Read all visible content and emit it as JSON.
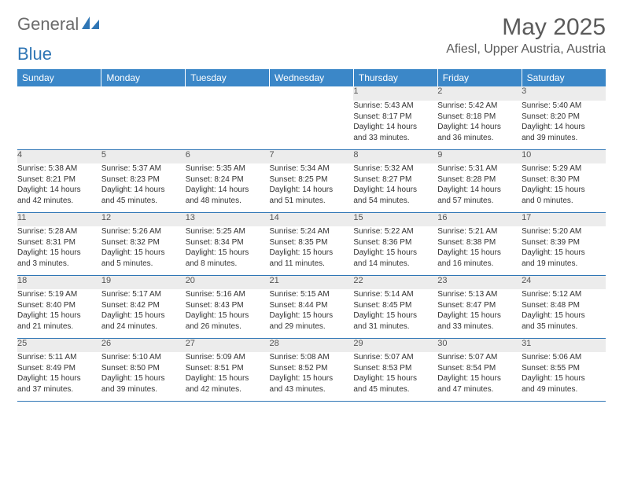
{
  "logo": {
    "part1": "General",
    "part2": "Blue"
  },
  "title": {
    "month": "May 2025",
    "location": "Afiesl, Upper Austria, Austria"
  },
  "colors": {
    "header_bg": "#3b87c8",
    "header_text": "#ffffff",
    "daynum_bg": "#ececec",
    "rule": "#2f76b5",
    "logo_gray": "#6b6b6b",
    "logo_blue": "#2f76b5",
    "body_text": "#333333",
    "background": "#ffffff"
  },
  "weekdays": [
    "Sunday",
    "Monday",
    "Tuesday",
    "Wednesday",
    "Thursday",
    "Friday",
    "Saturday"
  ],
  "weeks": [
    [
      null,
      null,
      null,
      null,
      {
        "n": "1",
        "sr": "Sunrise: 5:43 AM",
        "ss": "Sunset: 8:17 PM",
        "d1": "Daylight: 14 hours",
        "d2": "and 33 minutes."
      },
      {
        "n": "2",
        "sr": "Sunrise: 5:42 AM",
        "ss": "Sunset: 8:18 PM",
        "d1": "Daylight: 14 hours",
        "d2": "and 36 minutes."
      },
      {
        "n": "3",
        "sr": "Sunrise: 5:40 AM",
        "ss": "Sunset: 8:20 PM",
        "d1": "Daylight: 14 hours",
        "d2": "and 39 minutes."
      }
    ],
    [
      {
        "n": "4",
        "sr": "Sunrise: 5:38 AM",
        "ss": "Sunset: 8:21 PM",
        "d1": "Daylight: 14 hours",
        "d2": "and 42 minutes."
      },
      {
        "n": "5",
        "sr": "Sunrise: 5:37 AM",
        "ss": "Sunset: 8:23 PM",
        "d1": "Daylight: 14 hours",
        "d2": "and 45 minutes."
      },
      {
        "n": "6",
        "sr": "Sunrise: 5:35 AM",
        "ss": "Sunset: 8:24 PM",
        "d1": "Daylight: 14 hours",
        "d2": "and 48 minutes."
      },
      {
        "n": "7",
        "sr": "Sunrise: 5:34 AM",
        "ss": "Sunset: 8:25 PM",
        "d1": "Daylight: 14 hours",
        "d2": "and 51 minutes."
      },
      {
        "n": "8",
        "sr": "Sunrise: 5:32 AM",
        "ss": "Sunset: 8:27 PM",
        "d1": "Daylight: 14 hours",
        "d2": "and 54 minutes."
      },
      {
        "n": "9",
        "sr": "Sunrise: 5:31 AM",
        "ss": "Sunset: 8:28 PM",
        "d1": "Daylight: 14 hours",
        "d2": "and 57 minutes."
      },
      {
        "n": "10",
        "sr": "Sunrise: 5:29 AM",
        "ss": "Sunset: 8:30 PM",
        "d1": "Daylight: 15 hours",
        "d2": "and 0 minutes."
      }
    ],
    [
      {
        "n": "11",
        "sr": "Sunrise: 5:28 AM",
        "ss": "Sunset: 8:31 PM",
        "d1": "Daylight: 15 hours",
        "d2": "and 3 minutes."
      },
      {
        "n": "12",
        "sr": "Sunrise: 5:26 AM",
        "ss": "Sunset: 8:32 PM",
        "d1": "Daylight: 15 hours",
        "d2": "and 5 minutes."
      },
      {
        "n": "13",
        "sr": "Sunrise: 5:25 AM",
        "ss": "Sunset: 8:34 PM",
        "d1": "Daylight: 15 hours",
        "d2": "and 8 minutes."
      },
      {
        "n": "14",
        "sr": "Sunrise: 5:24 AM",
        "ss": "Sunset: 8:35 PM",
        "d1": "Daylight: 15 hours",
        "d2": "and 11 minutes."
      },
      {
        "n": "15",
        "sr": "Sunrise: 5:22 AM",
        "ss": "Sunset: 8:36 PM",
        "d1": "Daylight: 15 hours",
        "d2": "and 14 minutes."
      },
      {
        "n": "16",
        "sr": "Sunrise: 5:21 AM",
        "ss": "Sunset: 8:38 PM",
        "d1": "Daylight: 15 hours",
        "d2": "and 16 minutes."
      },
      {
        "n": "17",
        "sr": "Sunrise: 5:20 AM",
        "ss": "Sunset: 8:39 PM",
        "d1": "Daylight: 15 hours",
        "d2": "and 19 minutes."
      }
    ],
    [
      {
        "n": "18",
        "sr": "Sunrise: 5:19 AM",
        "ss": "Sunset: 8:40 PM",
        "d1": "Daylight: 15 hours",
        "d2": "and 21 minutes."
      },
      {
        "n": "19",
        "sr": "Sunrise: 5:17 AM",
        "ss": "Sunset: 8:42 PM",
        "d1": "Daylight: 15 hours",
        "d2": "and 24 minutes."
      },
      {
        "n": "20",
        "sr": "Sunrise: 5:16 AM",
        "ss": "Sunset: 8:43 PM",
        "d1": "Daylight: 15 hours",
        "d2": "and 26 minutes."
      },
      {
        "n": "21",
        "sr": "Sunrise: 5:15 AM",
        "ss": "Sunset: 8:44 PM",
        "d1": "Daylight: 15 hours",
        "d2": "and 29 minutes."
      },
      {
        "n": "22",
        "sr": "Sunrise: 5:14 AM",
        "ss": "Sunset: 8:45 PM",
        "d1": "Daylight: 15 hours",
        "d2": "and 31 minutes."
      },
      {
        "n": "23",
        "sr": "Sunrise: 5:13 AM",
        "ss": "Sunset: 8:47 PM",
        "d1": "Daylight: 15 hours",
        "d2": "and 33 minutes."
      },
      {
        "n": "24",
        "sr": "Sunrise: 5:12 AM",
        "ss": "Sunset: 8:48 PM",
        "d1": "Daylight: 15 hours",
        "d2": "and 35 minutes."
      }
    ],
    [
      {
        "n": "25",
        "sr": "Sunrise: 5:11 AM",
        "ss": "Sunset: 8:49 PM",
        "d1": "Daylight: 15 hours",
        "d2": "and 37 minutes."
      },
      {
        "n": "26",
        "sr": "Sunrise: 5:10 AM",
        "ss": "Sunset: 8:50 PM",
        "d1": "Daylight: 15 hours",
        "d2": "and 39 minutes."
      },
      {
        "n": "27",
        "sr": "Sunrise: 5:09 AM",
        "ss": "Sunset: 8:51 PM",
        "d1": "Daylight: 15 hours",
        "d2": "and 42 minutes."
      },
      {
        "n": "28",
        "sr": "Sunrise: 5:08 AM",
        "ss": "Sunset: 8:52 PM",
        "d1": "Daylight: 15 hours",
        "d2": "and 43 minutes."
      },
      {
        "n": "29",
        "sr": "Sunrise: 5:07 AM",
        "ss": "Sunset: 8:53 PM",
        "d1": "Daylight: 15 hours",
        "d2": "and 45 minutes."
      },
      {
        "n": "30",
        "sr": "Sunrise: 5:07 AM",
        "ss": "Sunset: 8:54 PM",
        "d1": "Daylight: 15 hours",
        "d2": "and 47 minutes."
      },
      {
        "n": "31",
        "sr": "Sunrise: 5:06 AM",
        "ss": "Sunset: 8:55 PM",
        "d1": "Daylight: 15 hours",
        "d2": "and 49 minutes."
      }
    ]
  ]
}
